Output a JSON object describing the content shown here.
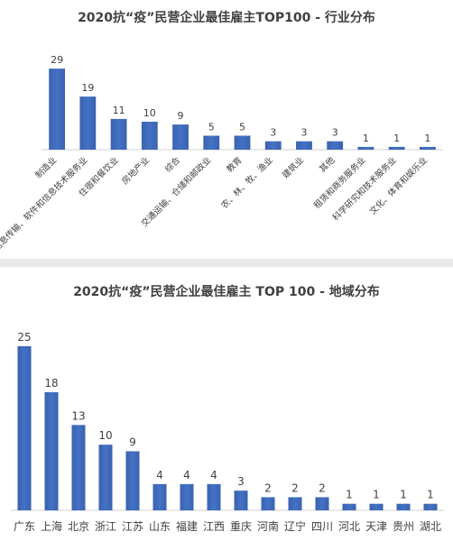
{
  "chart_data": [
    {
      "type": "bar",
      "title": "2020抗“疫”民营企业最佳雇主TOP100 - 行业分布",
      "categories": [
        "制造业",
        "信息传输、软件和信息技术服务业",
        "住宿和餐饮业",
        "房地产业",
        "综合",
        "交通运输、仓储和邮政业",
        "教育",
        "农、林、牧、渔业",
        "建筑业",
        "其他",
        "租赁和商务服务业",
        "科学研究和技术服务业",
        "文化、体育和娱乐业"
      ],
      "values": [
        29,
        19,
        11,
        10,
        9,
        5,
        5,
        3,
        3,
        3,
        1,
        1,
        1
      ],
      "ylim": [
        0,
        30
      ],
      "grid": false,
      "legend": "none",
      "bar_color": "#4472c4"
    },
    {
      "type": "bar",
      "title": "2020抗“疫”民营企业最佳雇主 TOP 100 - 地域分布",
      "categories": [
        "广东",
        "上海",
        "北京",
        "浙江",
        "江苏",
        "山东",
        "福建",
        "江西",
        "重庆",
        "河南",
        "辽宁",
        "四川",
        "河北",
        "天津",
        "贵州",
        "湖北"
      ],
      "values": [
        25,
        18,
        13,
        10,
        9,
        4,
        4,
        4,
        3,
        2,
        2,
        2,
        1,
        1,
        1,
        1
      ],
      "ylim": [
        0,
        25
      ],
      "grid": false,
      "legend": "none",
      "bar_color": "#4472c4"
    }
  ]
}
